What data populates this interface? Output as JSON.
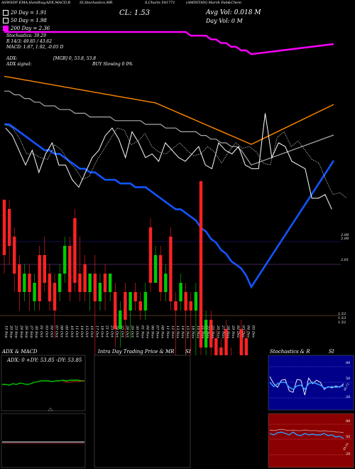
{
  "header": {
    "items": [
      {
        "text": "ASWSDF EMA,Handbuy,ADX,MACD,R",
        "x": 2
      },
      {
        "text": "SI,Stochastics,MR",
        "x": 112
      },
      {
        "text": "S,Charts 541771",
        "x": 204
      },
      {
        "text": "(AMINTAN) Marsh Fab&Chem",
        "x": 262
      }
    ],
    "cl_label": "CL: 1.53",
    "avg_vol": "Avg Vol: 0.018  M",
    "day_vol": "Day Vol: 0   M"
  },
  "legend": {
    "ema20": "20  Day = 1.91",
    "ema50": "50  Day = 1.98",
    "ema200": "200  Day = 2.36",
    "stoch_line1": "Stochastics: 39.29",
    "stoch_line2": "R   14/3: 49.85 / 43.62",
    "macd_line": "MACD: 1.87,  1.92,  -0.05 D",
    "adx_line1": "ADX:",
    "adx_line1b": "[MGB] 0,  53.8,  53.8",
    "adx_line2": "ADX  signal:",
    "adx_line2b": "BUY Slowing 0 0%",
    "colors": {
      "ema20": "#ffffff",
      "ema50": "#ffffff",
      "ema200": "#ff00ff"
    }
  },
  "price_labels": {
    "p1": "2.08",
    "p2": "2.01",
    "p3": "1.53",
    "p4": "1.53",
    "p5": "1.52"
  },
  "dates": [
    "19 Sep",
    "20 Sep",
    "23 Sep",
    "24 Sep",
    "26 Sep",
    "27 Sep",
    "30 Sep",
    "01 Oct",
    "03 Oct",
    "04 Oct",
    "07 Oct",
    "08 Oct",
    "09 Oct",
    "10 Oct",
    "11 Oct",
    "14 Oct",
    "15 Oct",
    "16 Oct",
    "17 Oct",
    "18 Oct",
    "21 Oct",
    "23 Oct",
    "24 Oct",
    "25 Oct",
    "28 Oct",
    "29 Oct",
    "30 Oct",
    "01 Nov",
    "04 Nov",
    "06 Nov",
    "07 Nov",
    "08 Nov",
    "11 Nov",
    "12 Nov",
    "13 Nov",
    "14 Nov",
    "15 Nov",
    "18 Nov",
    "19 Nov",
    "21 Nov",
    "22 Nov",
    "25 Nov",
    "26 Nov",
    "27 Nov",
    "28 Nov",
    "29 Nov",
    "02 Dec",
    "03 Dec",
    "04 Dec",
    "05 Dec"
  ],
  "panels": {
    "adx_title": "ADX  & MACD",
    "adx_values": "ADX: 0  +DY: 53.85  -DY: 53.85",
    "intraday_title": "Intra  Day Trading Price  & MR",
    "intraday_title_b": "SI",
    "stoch_title": "Stochastics & R",
    "stoch_title_b": "SI",
    "stoch_ticks": [
      "80",
      "50",
      "20"
    ],
    "rsi_ticks": [
      "80",
      "50",
      "20"
    ],
    "stoch_val": "40.73",
    "rsi_val": "49.54"
  },
  "chart_data": {
    "type": "candlestick",
    "ema20": [
      2.35,
      2.35,
      2.34,
      2.33,
      2.32,
      2.31,
      2.3,
      2.29,
      2.28,
      2.28,
      2.27,
      2.27,
      2.26,
      2.25,
      2.24,
      2.23,
      2.23,
      2.22,
      2.22,
      2.21,
      2.2,
      2.2,
      2.2,
      2.19,
      2.19,
      2.19,
      2.18,
      2.18,
      2.18,
      2.17,
      2.16,
      2.15,
      2.14,
      2.13,
      2.12,
      2.12,
      2.11,
      2.1,
      2.09,
      2.07,
      2.06,
      2.04,
      2.03,
      2.01,
      2.0,
      1.98,
      1.97,
      1.96,
      1.94,
      1.91
    ],
    "ema50": [
      2.18,
      2.18,
      2.17,
      2.17,
      2.16,
      2.16,
      2.15,
      2.15,
      2.14,
      2.14,
      2.14,
      2.13,
      2.13,
      2.13,
      2.12,
      2.12,
      2.12,
      2.11,
      2.11,
      2.11,
      2.11,
      2.11,
      2.1,
      2.1,
      2.1,
      2.1,
      2.1,
      2.1,
      2.09,
      2.09,
      2.09,
      2.09,
      2.08,
      2.08,
      2.08,
      2.07,
      2.07,
      2.07,
      2.07,
      2.06,
      2.06,
      2.05,
      2.05,
      2.04,
      2.04,
      2.03,
      2.03,
      2.02,
      2.0,
      1.98
    ],
    "ema200": [
      2.42,
      2.42,
      2.42,
      2.42,
      2.42,
      2.42,
      2.42,
      2.42,
      2.42,
      2.42,
      2.42,
      2.42,
      2.42,
      2.42,
      2.42,
      2.42,
      2.42,
      2.42,
      2.42,
      2.42,
      2.42,
      2.42,
      2.42,
      2.42,
      2.42,
      2.42,
      2.42,
      2.42,
      2.42,
      2.42,
      2.42,
      2.42,
      2.42,
      2.42,
      2.42,
      2.42,
      2.42,
      2.41,
      2.41,
      2.41,
      2.41,
      2.4,
      2.4,
      2.39,
      2.39,
      2.38,
      2.38,
      2.37,
      2.37,
      2.36
    ],
    "closes": [
      2.16,
      2.14,
      2.1,
      2.06,
      2.1,
      2.04,
      2.09,
      2.12,
      2.06,
      2.06,
      2.02,
      2.0,
      2.04,
      2.08,
      2.1,
      2.14,
      2.16,
      2.13,
      2.08,
      2.15,
      2.12,
      2.08,
      2.09,
      2.07,
      2.12,
      2.1,
      2.08,
      2.07,
      2.09,
      2.11,
      2.06,
      2.05,
      2.12,
      2.1,
      2.09,
      2.11,
      2.06,
      2.05,
      2.05,
      2.2,
      2.08,
      2.12,
      2.11,
      2.07,
      2.06,
      2.05,
      1.97,
      1.97,
      1.98,
      1.94
    ],
    "candles": [
      {
        "o": 2.08,
        "c": 2.02,
        "h": 2.08,
        "l": 2.0,
        "d": "r"
      },
      {
        "o": 2.07,
        "c": 2.03,
        "h": 2.08,
        "l": 2.01,
        "d": "r"
      },
      {
        "o": 2.04,
        "c": 2.0,
        "h": 2.05,
        "l": 1.98,
        "d": "r"
      },
      {
        "o": 2.01,
        "c": 1.98,
        "h": 2.02,
        "l": 1.96,
        "d": "r"
      },
      {
        "o": 1.98,
        "c": 2.0,
        "h": 2.01,
        "l": 1.97,
        "d": "g"
      },
      {
        "o": 2.0,
        "c": 1.98,
        "h": 2.01,
        "l": 1.96,
        "d": "r"
      },
      {
        "o": 1.97,
        "c": 1.99,
        "h": 2.0,
        "l": 1.96,
        "d": "g"
      },
      {
        "o": 2.02,
        "c": 1.97,
        "h": 2.03,
        "l": 1.96,
        "d": "r"
      },
      {
        "o": 2.02,
        "c": 1.99,
        "h": 2.04,
        "l": 1.98,
        "d": "r"
      },
      {
        "o": 2.0,
        "c": 1.97,
        "h": 2.01,
        "l": 1.96,
        "d": "r"
      },
      {
        "o": 1.99,
        "c": 1.96,
        "h": 2.0,
        "l": 1.93,
        "d": "r"
      },
      {
        "o": 1.98,
        "c": 2.0,
        "h": 2.01,
        "l": 1.97,
        "d": "g"
      },
      {
        "o": 2.0,
        "c": 2.03,
        "h": 2.04,
        "l": 1.99,
        "d": "g"
      },
      {
        "o": 2.03,
        "c": 1.98,
        "h": 2.04,
        "l": 1.97,
        "d": "r"
      },
      {
        "o": 2.06,
        "c": 1.99,
        "h": 2.07,
        "l": 1.98,
        "d": "r"
      },
      {
        "o": 2.0,
        "c": 1.98,
        "h": 2.04,
        "l": 1.97,
        "d": "r"
      },
      {
        "o": 2.01,
        "c": 1.98,
        "h": 2.02,
        "l": 1.97,
        "d": "r"
      },
      {
        "o": 1.98,
        "c": 2.0,
        "h": 2.0,
        "l": 1.96,
        "d": "g"
      },
      {
        "o": 2.0,
        "c": 1.97,
        "h": 2.02,
        "l": 1.85,
        "d": "r"
      },
      {
        "o": 1.97,
        "c": 1.99,
        "h": 2.0,
        "l": 1.96,
        "d": "g"
      },
      {
        "o": 2.0,
        "c": 1.98,
        "h": 2.01,
        "l": 1.96,
        "d": "r"
      },
      {
        "o": 1.98,
        "c": 2.0,
        "h": 2.0,
        "l": 1.97,
        "d": "g"
      },
      {
        "o": 1.98,
        "c": 1.94,
        "h": 1.99,
        "l": 1.92,
        "d": "r"
      },
      {
        "o": 1.94,
        "c": 1.96,
        "h": 1.97,
        "l": 1.92,
        "d": "g"
      },
      {
        "o": 1.98,
        "c": 1.95,
        "h": 1.99,
        "l": 1.93,
        "d": "r"
      },
      {
        "o": 1.96,
        "c": 1.98,
        "h": 1.98,
        "l": 1.93,
        "d": "g"
      },
      {
        "o": 1.98,
        "c": 1.97,
        "h": 1.99,
        "l": 1.96,
        "d": "r"
      },
      {
        "o": 1.97,
        "c": 1.96,
        "h": 1.98,
        "l": 1.95,
        "d": "r"
      },
      {
        "o": 1.96,
        "c": 1.98,
        "h": 1.99,
        "l": 1.95,
        "d": "g"
      },
      {
        "o": 2.05,
        "c": 1.99,
        "h": 2.06,
        "l": 1.98,
        "d": "r"
      },
      {
        "o": 1.99,
        "c": 2.02,
        "h": 2.03,
        "l": 1.99,
        "d": "g"
      },
      {
        "o": 2.02,
        "c": 1.98,
        "h": 2.03,
        "l": 1.97,
        "d": "r"
      },
      {
        "o": 1.98,
        "c": 2.0,
        "h": 2.01,
        "l": 1.97,
        "d": "g"
      },
      {
        "o": 2.04,
        "c": 1.97,
        "h": 2.05,
        "l": 1.96,
        "d": "r"
      },
      {
        "o": 1.97,
        "c": 1.96,
        "h": 1.98,
        "l": 1.9,
        "d": "r"
      },
      {
        "o": 1.97,
        "c": 1.99,
        "h": 2.0,
        "l": 1.96,
        "d": "g"
      },
      {
        "o": 1.98,
        "c": 1.96,
        "h": 1.99,
        "l": 1.86,
        "d": "r"
      },
      {
        "o": 1.97,
        "c": 1.96,
        "h": 1.98,
        "l": 1.86,
        "d": "r"
      },
      {
        "o": 1.96,
        "c": 1.98,
        "h": 1.99,
        "l": 1.88,
        "d": "g"
      },
      {
        "o": 2.1,
        "c": 1.92,
        "h": 2.1,
        "l": 1.9,
        "d": "r"
      },
      {
        "o": 1.92,
        "c": 1.95,
        "h": 1.96,
        "l": 1.9,
        "d": "g"
      },
      {
        "o": 1.95,
        "c": 1.92,
        "h": 1.96,
        "l": 1.91,
        "d": "r"
      },
      {
        "o": 1.93,
        "c": 1.91,
        "h": 1.94,
        "l": 1.88,
        "d": "r"
      },
      {
        "o": 1.92,
        "c": 1.9,
        "h": 1.93,
        "l": 1.88,
        "d": "r"
      },
      {
        "o": 1.94,
        "c": 1.91,
        "h": 1.95,
        "l": 1.9,
        "d": "r"
      },
      {
        "o": 1.91,
        "c": 1.89,
        "h": 1.92,
        "l": 1.86,
        "d": "r"
      },
      {
        "o": 1.89,
        "c": 1.9,
        "h": 1.91,
        "l": 1.88,
        "d": "g"
      },
      {
        "o": 1.94,
        "c": 1.86,
        "h": 1.95,
        "l": 1.85,
        "d": "r"
      },
      {
        "o": 1.93,
        "c": 1.87,
        "h": 1.94,
        "l": 1.86,
        "d": "r"
      },
      {
        "o": 1.87,
        "c": 1.86,
        "h": 1.88,
        "l": 1.85,
        "d": "g"
      }
    ]
  }
}
